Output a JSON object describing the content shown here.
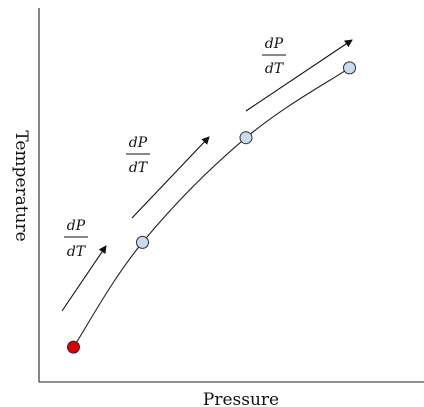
{
  "chart_data": {
    "type": "line",
    "xlabel": "Pressure",
    "ylabel": "Temperature",
    "grid": false,
    "axis_ticks": false,
    "x": [
      1.0,
      3.0,
      6.0,
      9.0
    ],
    "y": [
      1.0,
      4.0,
      7.0,
      9.0
    ],
    "points": [
      {
        "x": 1.0,
        "y": 1.0,
        "color": "#dd0000"
      },
      {
        "x": 3.0,
        "y": 4.0,
        "color": "#c9dbef"
      },
      {
        "x": 6.0,
        "y": 7.0,
        "color": "#c9dbef"
      },
      {
        "x": 9.0,
        "y": 9.0,
        "color": "#c9dbef"
      }
    ],
    "annotations": [
      {
        "numerator": "dP",
        "denominator": "dT"
      },
      {
        "numerator": "dP",
        "denominator": "dT"
      },
      {
        "numerator": "dP",
        "denominator": "dT"
      }
    ]
  },
  "colors": {
    "start_point": "#dd0000",
    "point": "#c9dbef",
    "point_stroke": "#2b2b3b",
    "line": "#222222"
  }
}
